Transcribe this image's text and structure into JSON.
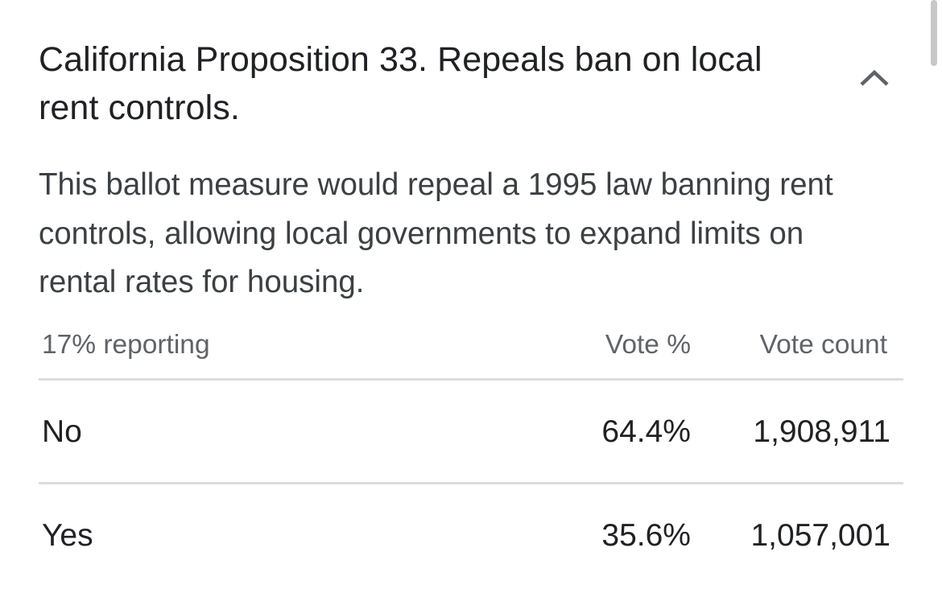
{
  "title": "California Proposition 33. Repeals ban on local rent controls.",
  "description": "This ballot measure would repeal a 1995 law banning rent controls, allowing local governments to expand limits on rental rates for housing.",
  "collapse_icon": "chevron-up-icon",
  "table": {
    "reporting": "17% reporting",
    "col_pct": "Vote %",
    "col_count": "Vote count",
    "rows": [
      {
        "choice": "No",
        "pct": "64.4%",
        "count": "1,908,911"
      },
      {
        "choice": "Yes",
        "pct": "35.6%",
        "count": "1,057,001"
      }
    ]
  },
  "colors": {
    "text_primary": "#202124",
    "text_secondary": "#5f6368",
    "divider": "#dadce0"
  }
}
